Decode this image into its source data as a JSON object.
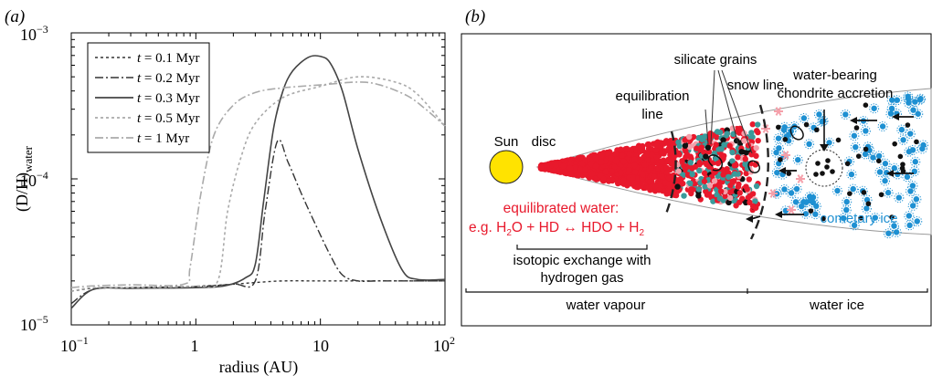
{
  "panel_a": {
    "label": "(a)",
    "ylabel_main": "(D/H)",
    "ylabel_sub": "water",
    "xlabel": "radius (AU)",
    "ytick_labels": [
      {
        "base": "10",
        "exp": "−3",
        "value": 0.001
      },
      {
        "base": "10",
        "exp": "−4",
        "value": 0.0001
      },
      {
        "base": "10",
        "exp": "−5",
        "value": 1e-05
      }
    ],
    "xtick_labels": [
      {
        "base": "10",
        "exp": "−1",
        "value": 0.1
      },
      {
        "base": "",
        "exp": "",
        "text": "1",
        "value": 1
      },
      {
        "base": "",
        "exp": "",
        "text": "10",
        "value": 10
      },
      {
        "base": "10",
        "exp": "2",
        "value": 100
      }
    ],
    "legend": [
      {
        "t": "t",
        "rest": " = 0.1 Myr",
        "color": "#333333",
        "dash": "3,3",
        "width": 1.4
      },
      {
        "t": "t",
        "rest": " = 0.2 Myr",
        "color": "#333333",
        "dash": "9,3,2,3",
        "width": 1.4
      },
      {
        "t": "t",
        "rest": " = 0.3 Myr",
        "color": "#444444",
        "dash": "",
        "width": 1.6
      },
      {
        "t": "t",
        "rest": " = 0.5 Myr",
        "color": "#aaaaaa",
        "dash": "3,3",
        "width": 1.6
      },
      {
        "t": "t",
        "rest": " = 1 Myr",
        "color": "#aaaaaa",
        "dash": "9,3,2,3",
        "width": 1.6
      }
    ]
  },
  "chart_data": {
    "type": "line",
    "title": "",
    "xlabel": "radius (AU)",
    "ylabel": "(D/H)water",
    "xscale": "log",
    "yscale": "log",
    "xlim": [
      0.1,
      100
    ],
    "ylim": [
      1e-05,
      0.001
    ],
    "legend_position": "top-left",
    "series": [
      {
        "name": "t = 0.1 Myr",
        "x": [
          0.1,
          0.15,
          0.3,
          1,
          2,
          3,
          5,
          10,
          30,
          100
        ],
        "y": [
          1.7e-05,
          1.78e-05,
          1.8e-05,
          1.84e-05,
          1.9e-05,
          1.95e-05,
          2e-05,
          2e-05,
          2e-05,
          2e-05
        ]
      },
      {
        "name": "t = 0.2 Myr",
        "x": [
          0.1,
          0.15,
          0.3,
          1,
          2,
          3,
          3.6,
          4.5,
          5.5,
          7,
          9,
          12,
          15,
          20,
          30,
          100
        ],
        "y": [
          1.4e-05,
          1.75e-05,
          1.8e-05,
          1.83e-05,
          1.9e-05,
          2e-05,
          6e-05,
          0.00018,
          0.00013,
          8e-05,
          5e-05,
          3e-05,
          2.2e-05,
          2e-05,
          2e-05,
          2e-05
        ]
      },
      {
        "name": "t = 0.3 Myr",
        "x": [
          0.1,
          0.15,
          0.3,
          1,
          1.7,
          2.5,
          3,
          3.5,
          4.2,
          5,
          6,
          8,
          10,
          12,
          15,
          20,
          30,
          45,
          60,
          100
        ],
        "y": [
          1.3e-05,
          1.75e-05,
          1.78e-05,
          1.8e-05,
          1.85e-05,
          2.1e-05,
          2.6e-05,
          7e-05,
          0.00022,
          0.0004,
          0.00055,
          0.00068,
          0.00069,
          0.00062,
          0.0004,
          0.00016,
          5.5e-05,
          2.4e-05,
          2.05e-05,
          2.05e-05
        ]
      },
      {
        "name": "t = 0.5 Myr",
        "x": [
          0.1,
          0.15,
          0.3,
          1,
          1.5,
          1.8,
          2.3,
          3,
          5,
          10,
          20,
          40,
          60,
          100
        ],
        "y": [
          1.7e-05,
          1.8e-05,
          1.8e-05,
          1.84e-05,
          2e-05,
          6e-05,
          0.00014,
          0.00024,
          0.00036,
          0.00043,
          0.0005,
          0.00046,
          0.00038,
          0.00023
        ]
      },
      {
        "name": "t = 1 Myr",
        "x": [
          0.1,
          0.15,
          0.3,
          0.8,
          0.9,
          1.1,
          1.4,
          2,
          3,
          5,
          10,
          20,
          30,
          50,
          70,
          100
        ],
        "y": [
          1.8e-05,
          1.85e-05,
          1.88e-05,
          1.9e-05,
          2.5e-05,
          8e-05,
          0.0002,
          0.00032,
          0.00039,
          0.00042,
          0.00044,
          0.00046,
          0.00044,
          0.00037,
          0.0003,
          0.00023
        ]
      }
    ]
  },
  "panel_b": {
    "label": "(b)",
    "sun": "Sun",
    "disc": "disc",
    "equilibration_line": [
      "equilibration",
      "line"
    ],
    "silicate_grains": "silicate grains",
    "snow_line": "snow line",
    "chondrite": [
      "water-bearing",
      "chondrite accretion"
    ],
    "equilibrated_title": "equilibrated water:",
    "reaction": {
      "prefix": "e.g. H",
      "o1": "O + HD ",
      "arrow": "↔",
      "o2": " HDO + H",
      "sub": "2"
    },
    "cometary_ice": "cometary ice",
    "isotopic": [
      "isotopic exchange with",
      "hydrogen gas"
    ],
    "water_vapour": "water vapour",
    "water_ice": "water ice",
    "colors": {
      "sun": "#ffe300",
      "red": "#e8192c",
      "teal": "#3a9a9a",
      "pink": "#f5a0aa",
      "blue": "#1e90d2",
      "black": "#111111"
    }
  }
}
